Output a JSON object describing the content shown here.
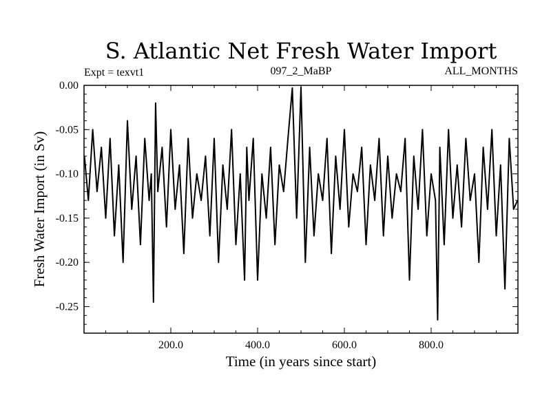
{
  "chart_data": {
    "type": "line",
    "title": "S. Atlantic Net Fresh Water Import",
    "subtitle_left": "Expt = texvt1",
    "subtitle_center": "097_2_MaBP",
    "subtitle_right": "ALL_MONTHS",
    "xlabel": "Time (in years since start)",
    "ylabel": "Fresh Water Import (in Sv)",
    "xlim": [
      0,
      1000
    ],
    "ylim": [
      -0.28,
      0.0
    ],
    "xticks": [
      200,
      400,
      600,
      800
    ],
    "xtick_labels": [
      "200.0",
      "400.0",
      "600.0",
      "800.0"
    ],
    "yticks": [
      0.0,
      -0.05,
      -0.1,
      -0.15,
      -0.2,
      -0.25
    ],
    "ytick_labels": [
      "0.00",
      "-0.05",
      "-0.10",
      "-0.15",
      "-0.20",
      "-0.25"
    ],
    "series": [
      {
        "name": "Fresh Water Import",
        "color": "#000000",
        "x": [
          1,
          10,
          20,
          30,
          40,
          50,
          60,
          70,
          80,
          90,
          100,
          110,
          120,
          130,
          140,
          150,
          155,
          160,
          165,
          170,
          180,
          190,
          200,
          210,
          220,
          230,
          240,
          250,
          260,
          270,
          280,
          290,
          300,
          310,
          320,
          330,
          340,
          350,
          360,
          370,
          375,
          380,
          390,
          400,
          410,
          420,
          430,
          440,
          450,
          460,
          470,
          480,
          490,
          500,
          510,
          520,
          530,
          540,
          550,
          560,
          570,
          580,
          590,
          600,
          610,
          620,
          630,
          640,
          650,
          660,
          670,
          680,
          690,
          700,
          710,
          720,
          730,
          740,
          750,
          760,
          770,
          780,
          790,
          800,
          810,
          815,
          820,
          830,
          840,
          850,
          860,
          870,
          880,
          890,
          900,
          910,
          920,
          930,
          940,
          950,
          960,
          970,
          980,
          990,
          999
        ],
        "values": [
          -0.08,
          -0.13,
          -0.05,
          -0.12,
          -0.07,
          -0.15,
          -0.06,
          -0.17,
          -0.09,
          -0.2,
          -0.04,
          -0.14,
          -0.08,
          -0.18,
          -0.06,
          -0.13,
          -0.1,
          -0.245,
          -0.02,
          -0.12,
          -0.07,
          -0.16,
          -0.05,
          -0.14,
          -0.09,
          -0.19,
          -0.06,
          -0.15,
          -0.1,
          -0.13,
          -0.08,
          -0.17,
          -0.06,
          -0.2,
          -0.09,
          -0.14,
          -0.05,
          -0.18,
          -0.1,
          -0.22,
          -0.07,
          -0.13,
          -0.06,
          -0.22,
          -0.1,
          -0.15,
          -0.07,
          -0.18,
          -0.09,
          -0.12,
          -0.06,
          -0.003,
          -0.15,
          -0.002,
          -0.2,
          -0.07,
          -0.17,
          -0.1,
          -0.13,
          -0.06,
          -0.19,
          -0.08,
          -0.14,
          -0.05,
          -0.16,
          -0.1,
          -0.12,
          -0.07,
          -0.18,
          -0.09,
          -0.13,
          -0.06,
          -0.17,
          -0.08,
          -0.15,
          -0.1,
          -0.12,
          -0.06,
          -0.22,
          -0.08,
          -0.14,
          -0.05,
          -0.17,
          -0.1,
          -0.13,
          -0.265,
          -0.07,
          -0.18,
          -0.05,
          -0.15,
          -0.09,
          -0.16,
          -0.06,
          -0.13,
          -0.1,
          -0.2,
          -0.07,
          -0.14,
          -0.05,
          -0.17,
          -0.09,
          -0.23,
          -0.06,
          -0.14,
          -0.13
        ]
      }
    ]
  }
}
